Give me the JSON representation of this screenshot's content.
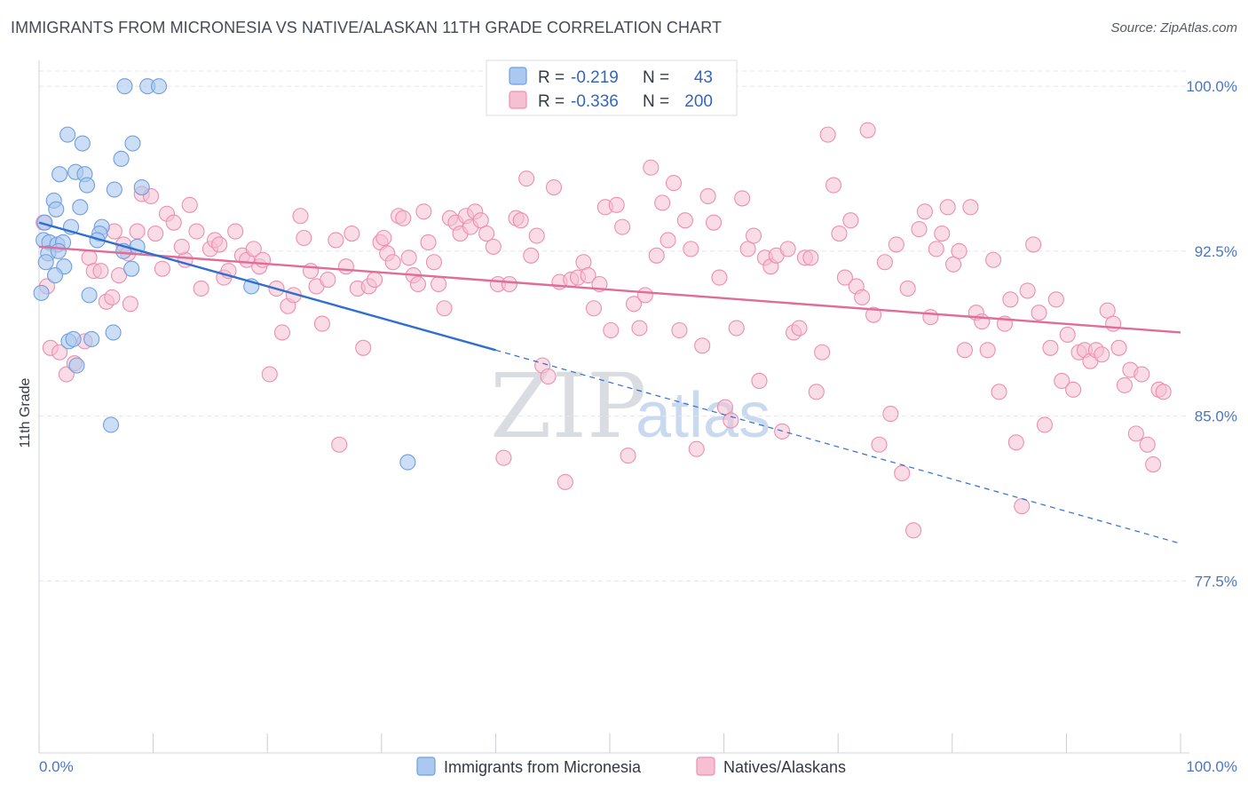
{
  "header": {
    "title": "IMMIGRANTS FROM MICRONESIA VS NATIVE/ALASKAN 11TH GRADE CORRELATION CHART",
    "source": "Source: ZipAtlas.com"
  },
  "watermark": {
    "zip": "ZIP",
    "atlas": "atlas"
  },
  "colors": {
    "blue_fill": "#aac8f0",
    "blue_stroke": "#6f9fe0",
    "blue_line": "#2f6fd0",
    "pink_fill": "#f6bfd2",
    "pink_stroke": "#ec8fb0",
    "pink_line": "#e06c97",
    "grid": "#e2e5ea",
    "tick_label": "#4a76c4"
  },
  "chart_data": {
    "type": "scatter",
    "title": "IMMIGRANTS FROM MICRONESIA VS NATIVE/ALASKAN 11TH GRADE CORRELATION CHART",
    "xlabel": "",
    "ylabel": "11th Grade",
    "xlim": [
      0,
      100
    ],
    "ylim": [
      70,
      101.5
    ],
    "x_tick_labels": [
      "0.0%",
      "100.0%"
    ],
    "y_ticks": [
      77.5,
      85.0,
      92.5,
      100.0
    ],
    "y_tick_labels": [
      "77.5%",
      "85.0%",
      "92.5%",
      "100.0%"
    ],
    "grid": "horizontal-dashed",
    "legend_placement": "top-center",
    "legend": [
      {
        "r_label": "R =",
        "r_value": "-0.219",
        "n_label": "N =",
        "n_value": "43"
      },
      {
        "r_label": "R =",
        "r_value": "-0.336",
        "n_label": "N =",
        "n_value": "200"
      }
    ],
    "series": [
      {
        "name": "Immigrants from Micronesia",
        "color": "#aac8f0",
        "trend": {
          "x0": 0.0,
          "y0": 93.8,
          "x1": 40.0,
          "y1": 88.0,
          "dashed_to_x": 100.0,
          "dashed_to_y": 79.2
        },
        "points": [
          [
            7.5,
            100.0
          ],
          [
            9.5,
            100.0
          ],
          [
            10.5,
            100.0
          ],
          [
            2.5,
            97.8
          ],
          [
            3.8,
            97.4
          ],
          [
            8.2,
            97.4
          ],
          [
            7.2,
            96.7
          ],
          [
            1.8,
            96.0
          ],
          [
            3.2,
            96.1
          ],
          [
            4.0,
            96.0
          ],
          [
            4.2,
            95.5
          ],
          [
            6.6,
            95.3
          ],
          [
            9.0,
            95.4
          ],
          [
            1.3,
            94.8
          ],
          [
            1.5,
            94.4
          ],
          [
            3.6,
            94.5
          ],
          [
            0.5,
            93.8
          ],
          [
            2.8,
            93.6
          ],
          [
            5.5,
            93.6
          ],
          [
            5.3,
            93.3
          ],
          [
            0.4,
            93.0
          ],
          [
            0.9,
            92.9
          ],
          [
            1.6,
            92.8
          ],
          [
            2.1,
            92.9
          ],
          [
            5.1,
            93.0
          ],
          [
            8.6,
            92.7
          ],
          [
            0.8,
            92.4
          ],
          [
            1.7,
            92.5
          ],
          [
            7.4,
            92.5
          ],
          [
            2.2,
            91.8
          ],
          [
            8.1,
            91.7
          ],
          [
            1.4,
            91.4
          ],
          [
            18.6,
            90.9
          ],
          [
            0.2,
            90.6
          ],
          [
            4.4,
            90.5
          ],
          [
            6.5,
            88.8
          ],
          [
            2.6,
            88.4
          ],
          [
            3.0,
            88.5
          ],
          [
            4.6,
            88.5
          ],
          [
            3.3,
            87.3
          ],
          [
            6.3,
            84.6
          ],
          [
            32.3,
            82.9
          ],
          [
            0.6,
            92.0
          ]
        ]
      },
      {
        "name": "Natives/Alaskans",
        "color": "#f6bfd2",
        "trend": {
          "x0": 0.0,
          "y0": 92.7,
          "x1": 100.0,
          "y1": 88.8
        },
        "points": [
          [
            0.4,
            93.8
          ],
          [
            0.7,
            90.9
          ],
          [
            1.0,
            88.1
          ],
          [
            1.8,
            87.9
          ],
          [
            2.4,
            86.9
          ],
          [
            3.1,
            87.4
          ],
          [
            4.0,
            88.4
          ],
          [
            4.4,
            92.2
          ],
          [
            4.8,
            91.6
          ],
          [
            5.4,
            91.6
          ],
          [
            5.9,
            90.2
          ],
          [
            6.4,
            90.4
          ],
          [
            6.6,
            93.4
          ],
          [
            7.0,
            91.4
          ],
          [
            7.4,
            92.8
          ],
          [
            7.8,
            92.4
          ],
          [
            8.0,
            90.1
          ],
          [
            8.6,
            93.4
          ],
          [
            9.0,
            95.1
          ],
          [
            9.8,
            95.0
          ],
          [
            10.2,
            93.3
          ],
          [
            10.8,
            91.7
          ],
          [
            11.2,
            94.2
          ],
          [
            11.8,
            93.8
          ],
          [
            12.8,
            92.1
          ],
          [
            12.5,
            92.7
          ],
          [
            13.2,
            94.6
          ],
          [
            13.8,
            93.4
          ],
          [
            14.2,
            90.8
          ],
          [
            15.0,
            92.6
          ],
          [
            15.4,
            93.0
          ],
          [
            15.8,
            92.8
          ],
          [
            16.2,
            91.3
          ],
          [
            16.6,
            91.6
          ],
          [
            17.2,
            93.4
          ],
          [
            17.8,
            92.3
          ],
          [
            18.2,
            92.1
          ],
          [
            18.8,
            92.6
          ],
          [
            19.3,
            91.8
          ],
          [
            19.6,
            92.1
          ],
          [
            20.2,
            86.9
          ],
          [
            20.8,
            90.8
          ],
          [
            21.3,
            88.8
          ],
          [
            21.8,
            90.0
          ],
          [
            22.3,
            90.5
          ],
          [
            22.9,
            94.1
          ],
          [
            23.2,
            93.1
          ],
          [
            23.8,
            91.6
          ],
          [
            24.3,
            90.9
          ],
          [
            24.8,
            89.2
          ],
          [
            25.3,
            91.2
          ],
          [
            26.0,
            93.0
          ],
          [
            26.3,
            83.7
          ],
          [
            26.9,
            91.8
          ],
          [
            27.4,
            93.3
          ],
          [
            27.9,
            90.8
          ],
          [
            28.4,
            88.1
          ],
          [
            28.9,
            90.9
          ],
          [
            29.4,
            91.2
          ],
          [
            29.9,
            92.9
          ],
          [
            30.2,
            93.1
          ],
          [
            30.5,
            92.4
          ],
          [
            31.0,
            92.0
          ],
          [
            31.5,
            94.1
          ],
          [
            31.9,
            94.0
          ],
          [
            32.4,
            92.2
          ],
          [
            32.8,
            91.4
          ],
          [
            33.2,
            91.0
          ],
          [
            33.7,
            94.3
          ],
          [
            34.1,
            92.9
          ],
          [
            34.6,
            92.0
          ],
          [
            35.0,
            91.0
          ],
          [
            35.5,
            89.9
          ],
          [
            36.0,
            94.0
          ],
          [
            36.5,
            93.8
          ],
          [
            36.9,
            93.3
          ],
          [
            37.4,
            94.1
          ],
          [
            37.8,
            93.6
          ],
          [
            38.2,
            94.3
          ],
          [
            38.7,
            93.9
          ],
          [
            39.2,
            93.3
          ],
          [
            39.8,
            92.7
          ],
          [
            40.2,
            91.0
          ],
          [
            40.7,
            83.1
          ],
          [
            41.2,
            91.0
          ],
          [
            41.8,
            94.0
          ],
          [
            42.2,
            93.9
          ],
          [
            42.7,
            95.8
          ],
          [
            43.1,
            92.3
          ],
          [
            43.6,
            93.2
          ],
          [
            44.1,
            87.3
          ],
          [
            44.6,
            86.8
          ],
          [
            45.1,
            95.4
          ],
          [
            45.6,
            91.1
          ],
          [
            46.1,
            82.0
          ],
          [
            46.6,
            91.2
          ],
          [
            47.2,
            91.3
          ],
          [
            47.7,
            92.0
          ],
          [
            48.1,
            91.4
          ],
          [
            48.6,
            89.9
          ],
          [
            49.1,
            91.0
          ],
          [
            49.6,
            94.5
          ],
          [
            50.1,
            88.9
          ],
          [
            50.6,
            94.6
          ],
          [
            51.1,
            93.6
          ],
          [
            51.6,
            83.2
          ],
          [
            52.1,
            90.1
          ],
          [
            52.6,
            89.0
          ],
          [
            53.1,
            90.5
          ],
          [
            53.6,
            96.3
          ],
          [
            54.1,
            92.3
          ],
          [
            54.6,
            94.7
          ],
          [
            55.1,
            93.0
          ],
          [
            55.6,
            95.6
          ],
          [
            56.1,
            88.9
          ],
          [
            56.6,
            93.9
          ],
          [
            57.1,
            92.6
          ],
          [
            57.6,
            83.5
          ],
          [
            58.1,
            88.2
          ],
          [
            58.6,
            95.0
          ],
          [
            59.1,
            93.8
          ],
          [
            59.6,
            91.3
          ],
          [
            60.1,
            85.4
          ],
          [
            60.6,
            84.8
          ],
          [
            61.1,
            89.0
          ],
          [
            61.6,
            94.9
          ],
          [
            62.1,
            92.6
          ],
          [
            62.6,
            93.2
          ],
          [
            63.1,
            86.6
          ],
          [
            63.6,
            92.2
          ],
          [
            64.1,
            91.8
          ],
          [
            64.6,
            92.3
          ],
          [
            65.1,
            84.3
          ],
          [
            65.6,
            92.6
          ],
          [
            66.1,
            88.8
          ],
          [
            66.6,
            89.0
          ],
          [
            67.1,
            92.2
          ],
          [
            67.6,
            92.2
          ],
          [
            68.1,
            86.1
          ],
          [
            68.6,
            87.9
          ],
          [
            69.1,
            97.8
          ],
          [
            69.6,
            95.5
          ],
          [
            70.1,
            93.3
          ],
          [
            70.6,
            91.3
          ],
          [
            71.1,
            93.9
          ],
          [
            71.6,
            90.9
          ],
          [
            72.1,
            90.4
          ],
          [
            72.6,
            98.0
          ],
          [
            73.1,
            89.6
          ],
          [
            73.6,
            83.7
          ],
          [
            74.1,
            92.0
          ],
          [
            74.6,
            85.1
          ],
          [
            75.1,
            92.8
          ],
          [
            75.6,
            82.4
          ],
          [
            76.1,
            90.8
          ],
          [
            76.6,
            79.8
          ],
          [
            77.1,
            93.5
          ],
          [
            77.6,
            94.3
          ],
          [
            78.1,
            89.5
          ],
          [
            78.6,
            92.6
          ],
          [
            79.1,
            93.3
          ],
          [
            79.6,
            94.5
          ],
          [
            80.1,
            91.9
          ],
          [
            80.6,
            92.5
          ],
          [
            81.1,
            88.0
          ],
          [
            81.6,
            94.5
          ],
          [
            82.1,
            89.7
          ],
          [
            82.6,
            89.3
          ],
          [
            83.1,
            88.0
          ],
          [
            83.6,
            92.1
          ],
          [
            84.1,
            86.1
          ],
          [
            84.6,
            89.2
          ],
          [
            85.1,
            90.3
          ],
          [
            85.6,
            83.8
          ],
          [
            86.1,
            80.9
          ],
          [
            86.6,
            90.7
          ],
          [
            87.1,
            92.8
          ],
          [
            87.6,
            89.7
          ],
          [
            88.1,
            84.6
          ],
          [
            88.6,
            88.1
          ],
          [
            89.1,
            90.3
          ],
          [
            89.6,
            86.6
          ],
          [
            90.1,
            88.7
          ],
          [
            90.6,
            86.2
          ],
          [
            91.1,
            87.9
          ],
          [
            91.6,
            88.0
          ],
          [
            92.1,
            87.5
          ],
          [
            92.6,
            88.0
          ],
          [
            93.1,
            87.8
          ],
          [
            93.6,
            89.8
          ],
          [
            94.1,
            89.2
          ],
          [
            94.6,
            88.1
          ],
          [
            95.1,
            86.4
          ],
          [
            95.6,
            87.1
          ],
          [
            96.1,
            84.2
          ],
          [
            96.6,
            86.9
          ],
          [
            97.1,
            83.7
          ],
          [
            97.6,
            82.8
          ],
          [
            98.1,
            86.2
          ],
          [
            98.5,
            86.1
          ]
        ]
      }
    ]
  },
  "bottom_legend": {
    "items": [
      {
        "label": "Immigrants from Micronesia"
      },
      {
        "label": "Natives/Alaskans"
      }
    ]
  }
}
